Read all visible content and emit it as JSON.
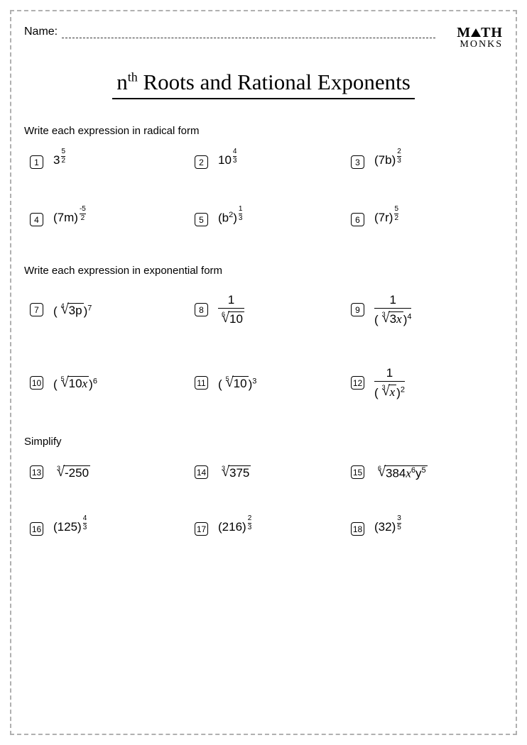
{
  "header": {
    "name_label": "Name:",
    "logo_line1": "M",
    "logo_line1b": "TH",
    "logo_line2": "MONKS"
  },
  "title": {
    "prefix": "n",
    "sup": "th",
    "rest": " Roots and Rational Exponents"
  },
  "sections": [
    {
      "instruction": "Write each expression in radical form",
      "problems": [
        {
          "n": "1",
          "kind": "exp",
          "base": "3",
          "exp_num": "5",
          "exp_den": "2"
        },
        {
          "n": "2",
          "kind": "exp",
          "base": "10",
          "exp_num": "4",
          "exp_den": "3"
        },
        {
          "n": "3",
          "kind": "exp",
          "base": "(7b)",
          "exp_num": "2",
          "exp_den": "3"
        },
        {
          "n": "4",
          "kind": "exp",
          "base": "(7m)",
          "exp_num": "-5",
          "exp_den": "2",
          "neg_sp": true
        },
        {
          "n": "5",
          "kind": "exp",
          "base_html": "(b<span class='ssup'>2</span>)",
          "exp_num": "1",
          "exp_den": "3"
        },
        {
          "n": "6",
          "kind": "exp",
          "base": "(7r)",
          "exp_num": "5",
          "exp_den": "2"
        }
      ]
    },
    {
      "instruction": "Write each expression in exponential form",
      "problems": [
        {
          "n": "7",
          "kind": "radpow",
          "idx": "4",
          "body": "3p",
          "outer": "7"
        },
        {
          "n": "8",
          "kind": "fracrad",
          "num": "1",
          "idx": "6",
          "body": "10"
        },
        {
          "n": "9",
          "kind": "fracrad",
          "num": "1",
          "idx": "3",
          "body_html": "3<span class='it'>x</span>",
          "outer": "4"
        },
        {
          "n": "10",
          "kind": "radpow",
          "idx": "5",
          "body_html": "10<span class='it'>x</span>",
          "outer": "6"
        },
        {
          "n": "11",
          "kind": "radpow",
          "idx": "5",
          "body": "10",
          "outer": "3"
        },
        {
          "n": "12",
          "kind": "fracrad",
          "num": "1",
          "idx": "3",
          "body_html": "<span class='it'>x</span>",
          "outer": "2"
        }
      ]
    },
    {
      "instruction": "Simplify",
      "problems": [
        {
          "n": "13",
          "kind": "rad",
          "idx": "3",
          "body": "-250"
        },
        {
          "n": "14",
          "kind": "rad",
          "idx": "3",
          "body": "375"
        },
        {
          "n": "15",
          "kind": "rad",
          "idx": "6",
          "body_html": "384<span class='it'>x</span><span class='ssup'>6</span>y<span class='ssup'>5</span>"
        },
        {
          "n": "16",
          "kind": "exp",
          "base": "(125)",
          "exp_num": "4",
          "exp_den": "3"
        },
        {
          "n": "17",
          "kind": "exp",
          "base": "(216)",
          "exp_num": "2",
          "exp_den": "3"
        },
        {
          "n": "18",
          "kind": "exp",
          "base": "(32)",
          "exp_num": "3",
          "exp_den": "5"
        }
      ]
    }
  ],
  "colors": {
    "border": "#b0b0b0",
    "text": "#000000",
    "bg": "#ffffff"
  }
}
